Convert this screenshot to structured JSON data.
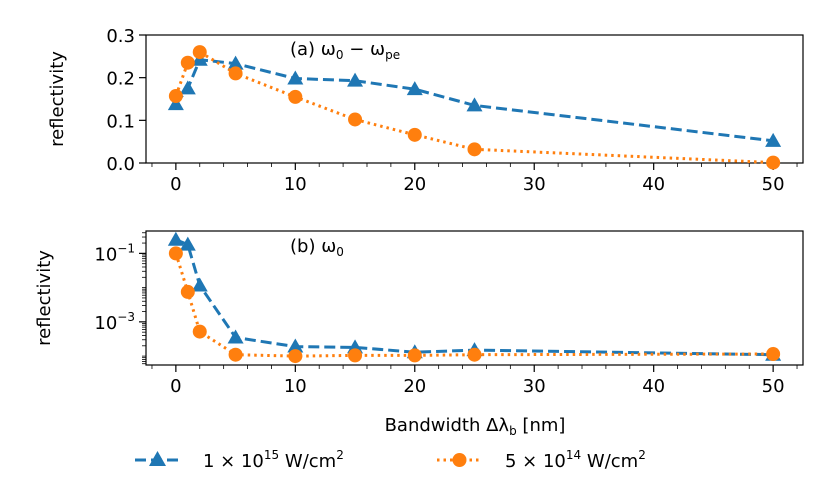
{
  "chart_data": [
    {
      "type": "line",
      "panel_label": "(a) ω",
      "panel_label_sub": "0",
      "panel_label_minus": " − ω",
      "panel_label_sub2": "pe",
      "ylabel": "reflectivity",
      "yscale": "linear",
      "ylim": [
        0,
        0.3
      ],
      "xlim": [
        -2.5,
        52.5
      ],
      "yticks": [
        "0.0",
        "0.1",
        "0.2",
        "0.3"
      ],
      "series": [
        {
          "name": "1e15",
          "color": "#1f77b4",
          "marker": "triangle",
          "linestyle": "dashed",
          "x": [
            0,
            1,
            2,
            5,
            10,
            15,
            20,
            25,
            50
          ],
          "values": [
            0.138,
            0.175,
            0.242,
            0.233,
            0.198,
            0.193,
            0.173,
            0.135,
            0.052
          ]
        },
        {
          "name": "5e14",
          "color": "#ff7f0e",
          "marker": "circle",
          "linestyle": "dotted",
          "x": [
            0,
            1,
            2,
            5,
            10,
            15,
            20,
            25,
            50
          ],
          "values": [
            0.157,
            0.235,
            0.26,
            0.21,
            0.155,
            0.102,
            0.066,
            0.032,
            0.001
          ]
        }
      ]
    },
    {
      "type": "line",
      "panel_label": "(b) ω",
      "panel_label_sub": "0",
      "ylabel": "reflectivity",
      "yscale": "log",
      "ylim": [
        5.5e-05,
        0.45
      ],
      "xlim": [
        -2.5,
        52.5
      ],
      "ytick_values": [
        0.1,
        0.001
      ],
      "yticks_base": "10",
      "yticks_exp": [
        "−1",
        "−3"
      ],
      "series": [
        {
          "name": "1e15",
          "color": "#1f77b4",
          "marker": "triangle",
          "linestyle": "dashed",
          "x": [
            0,
            1,
            2,
            5,
            10,
            15,
            20,
            25,
            50
          ],
          "values": [
            0.25,
            0.18,
            0.0115,
            0.00035,
            0.00019,
            0.00018,
            0.00013,
            0.00015,
            0.00011
          ]
        },
        {
          "name": "5e14",
          "color": "#ff7f0e",
          "marker": "circle",
          "linestyle": "dotted",
          "x": [
            0,
            1,
            2,
            5,
            10,
            15,
            20,
            25,
            50
          ],
          "values": [
            0.1,
            0.0075,
            0.00052,
            0.00011,
            0.0001,
            0.000105,
            0.000105,
            0.00011,
            0.000115
          ]
        }
      ]
    }
  ],
  "xticks": [
    "0",
    "10",
    "20",
    "30",
    "40",
    "50"
  ],
  "xtick_values": [
    0,
    10,
    20,
    30,
    40,
    50
  ],
  "xlabel_prefix": "Bandwidth Δλ",
  "xlabel_sub": "b",
  "xlabel_suffix": " [nm]",
  "legend": [
    {
      "mant": "1 × 10",
      "exp": "15",
      "unit": " W/cm",
      "unit_exp": "2",
      "color": "#1f77b4",
      "marker": "triangle",
      "linestyle": "dashed"
    },
    {
      "mant": "5 × 10",
      "exp": "14",
      "unit": " W/cm",
      "unit_exp": "2",
      "color": "#ff7f0e",
      "marker": "circle",
      "linestyle": "dotted"
    }
  ]
}
